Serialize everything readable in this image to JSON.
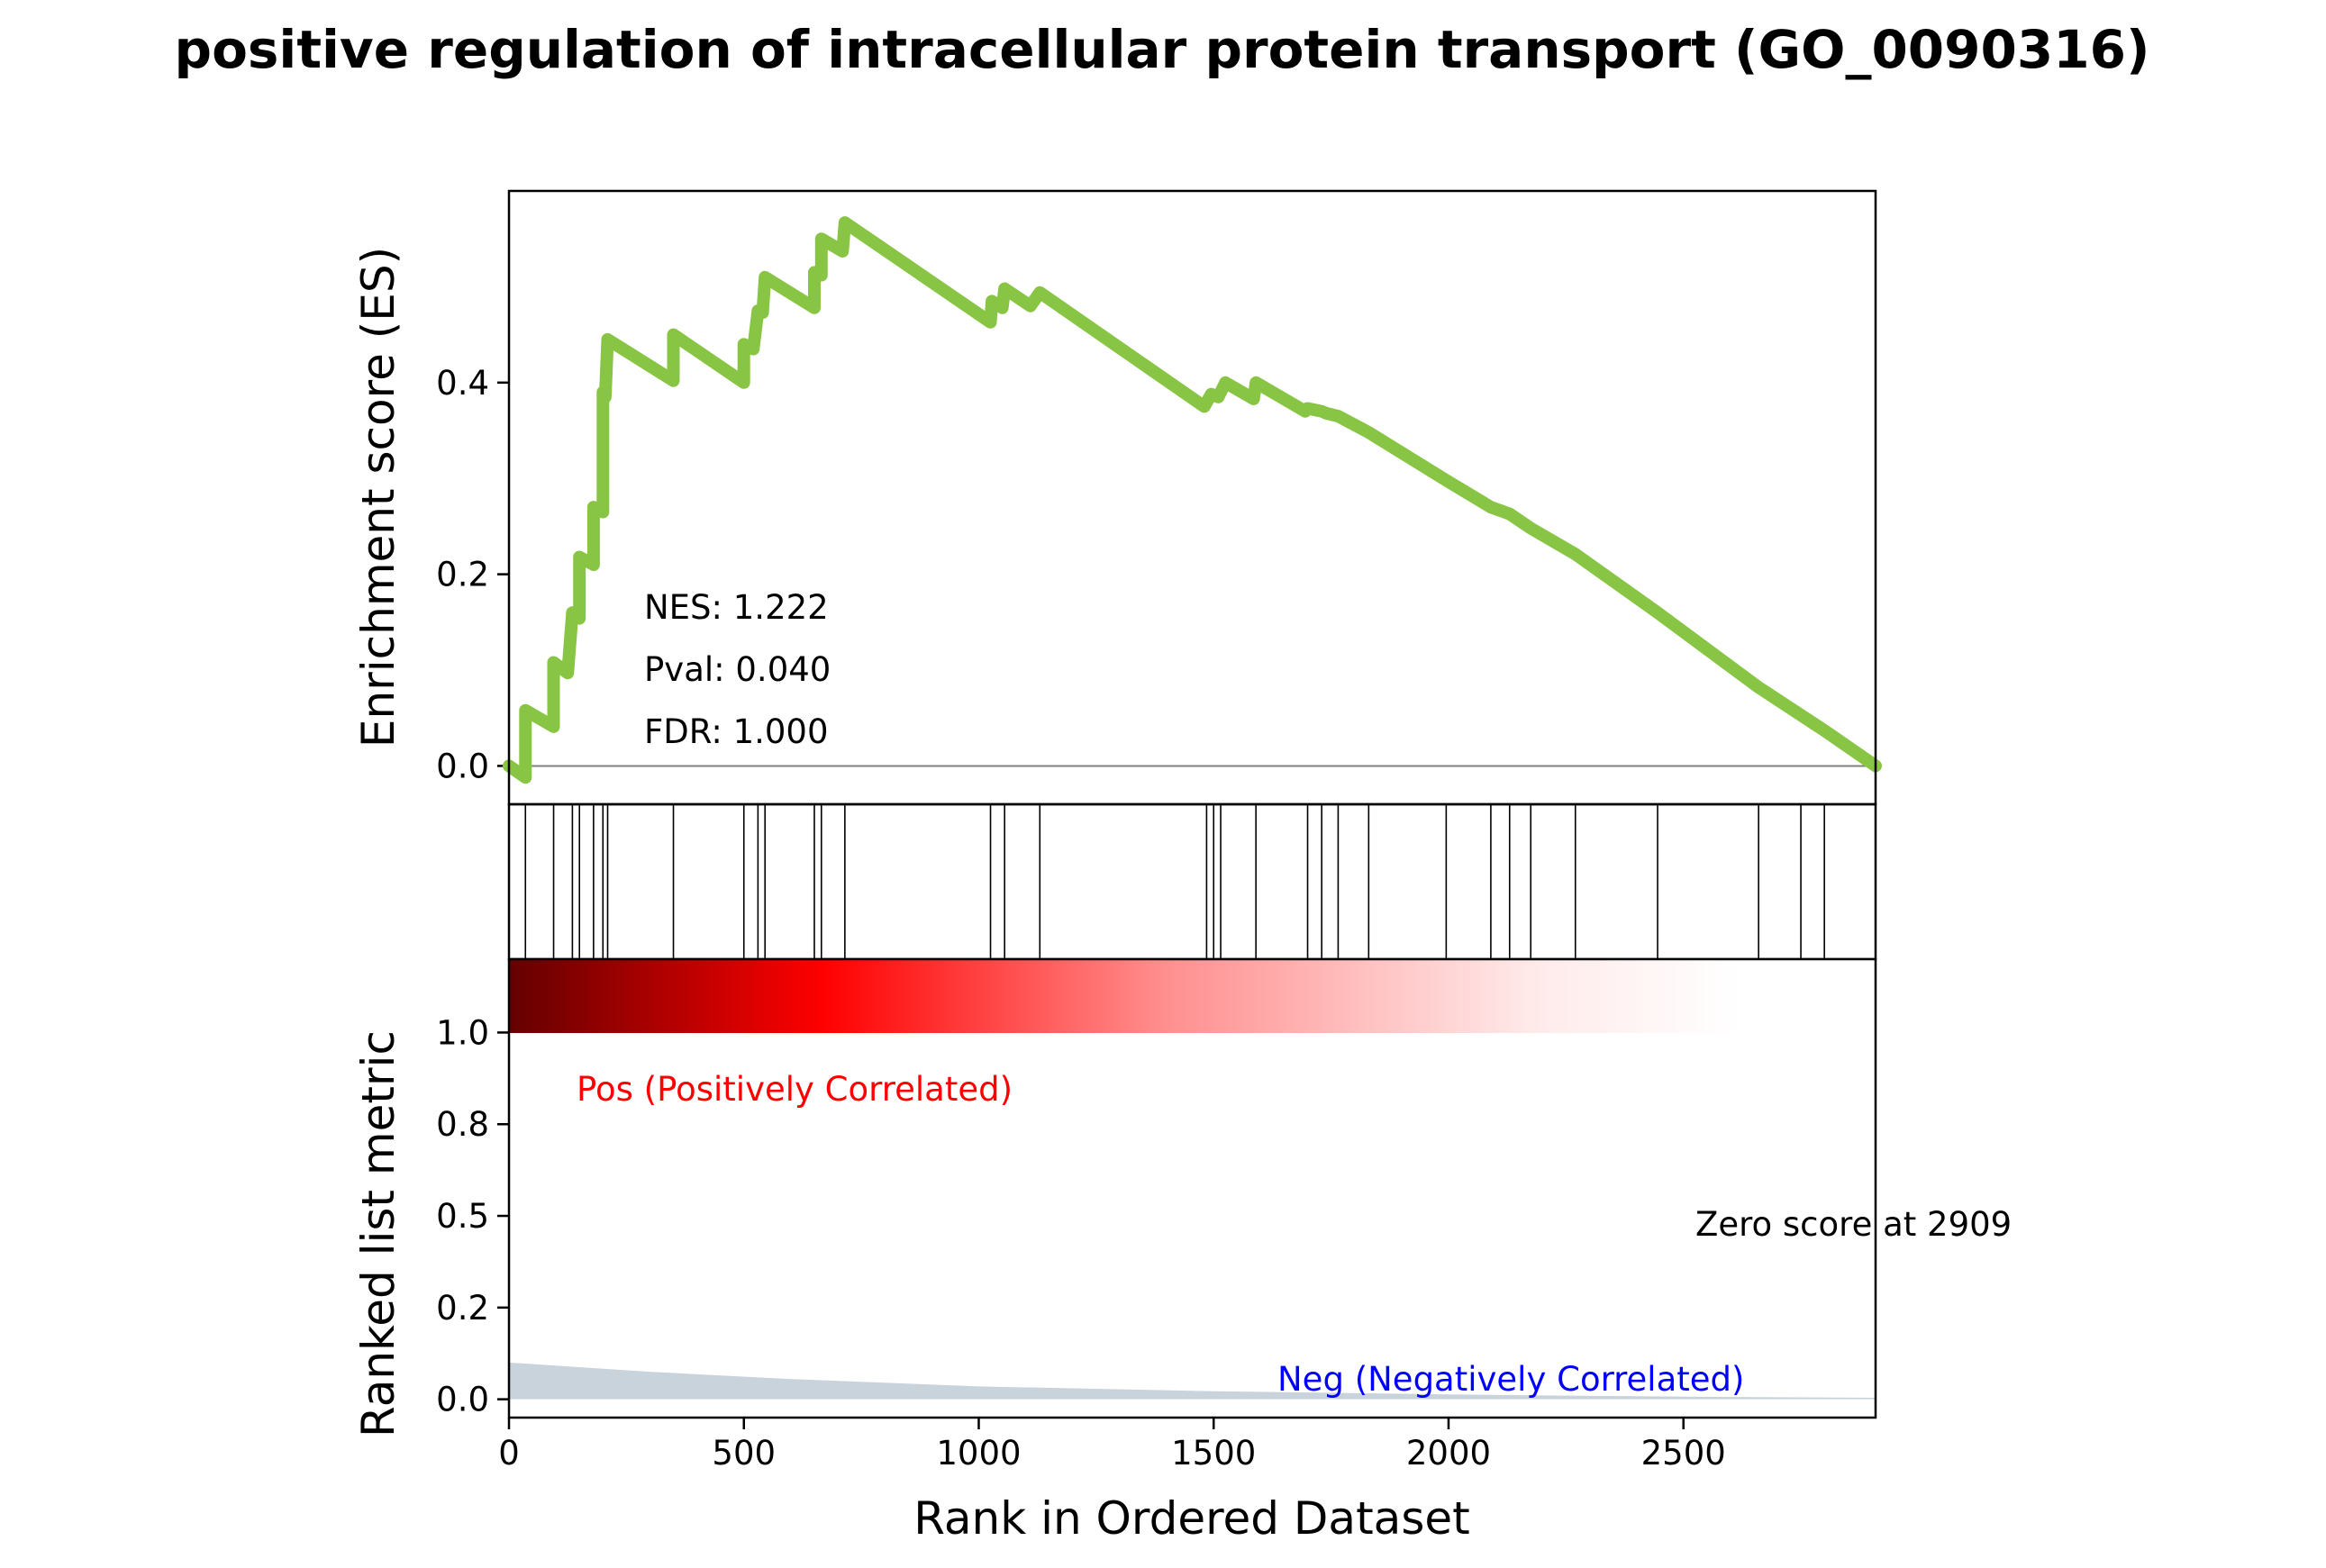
{
  "title": "positive regulation of intracellular protein transport (GO_0090316)",
  "colors": {
    "es_line": "#88c544",
    "hits": "#000000",
    "pos_text": "#ff0000",
    "neg_text": "#0000ff",
    "metric_fill": "#c9d3dc"
  },
  "chart_data": {
    "type": "line",
    "x_max": 2909,
    "xlabel": "Rank in Ordered Dataset",
    "x_ticks": [
      "0",
      "500",
      "1000",
      "1500",
      "2000",
      "2500"
    ],
    "es": {
      "ylabel": "Enrichment score (ES)",
      "ylim": [
        -0.04,
        0.6
      ],
      "y_ticks": [
        "0.0",
        "0.2",
        "0.4"
      ],
      "points": [
        [
          0,
          0.0
        ],
        [
          35,
          -0.012
        ],
        [
          35,
          0.058
        ],
        [
          95,
          0.041
        ],
        [
          95,
          0.108
        ],
        [
          125,
          0.097
        ],
        [
          135,
          0.16
        ],
        [
          150,
          0.154
        ],
        [
          150,
          0.218
        ],
        [
          180,
          0.21
        ],
        [
          180,
          0.27
        ],
        [
          200,
          0.265
        ],
        [
          200,
          0.39
        ],
        [
          205,
          0.385
        ],
        [
          210,
          0.445
        ],
        [
          350,
          0.402
        ],
        [
          350,
          0.45
        ],
        [
          500,
          0.4
        ],
        [
          500,
          0.44
        ],
        [
          520,
          0.435
        ],
        [
          530,
          0.475
        ],
        [
          540,
          0.473
        ],
        [
          545,
          0.51
        ],
        [
          650,
          0.478
        ],
        [
          650,
          0.515
        ],
        [
          665,
          0.512
        ],
        [
          665,
          0.55
        ],
        [
          710,
          0.537
        ],
        [
          715,
          0.567
        ],
        [
          1025,
          0.463
        ],
        [
          1028,
          0.485
        ],
        [
          1050,
          0.478
        ],
        [
          1055,
          0.498
        ],
        [
          1110,
          0.48
        ],
        [
          1130,
          0.494
        ],
        [
          1480,
          0.375
        ],
        [
          1495,
          0.388
        ],
        [
          1510,
          0.385
        ],
        [
          1525,
          0.4
        ],
        [
          1585,
          0.383
        ],
        [
          1590,
          0.4
        ],
        [
          1695,
          0.37
        ],
        [
          1700,
          0.373
        ],
        [
          1730,
          0.37
        ],
        [
          1740,
          0.368
        ],
        [
          1765,
          0.365
        ],
        [
          1830,
          0.348
        ],
        [
          1995,
          0.298
        ],
        [
          2090,
          0.27
        ],
        [
          2130,
          0.263
        ],
        [
          2175,
          0.248
        ],
        [
          2270,
          0.221
        ],
        [
          2445,
          0.16
        ],
        [
          2660,
          0.082
        ],
        [
          2750,
          0.053
        ],
        [
          2800,
          0.037
        ],
        [
          2909,
          0.0
        ]
      ]
    },
    "hits": [
      35,
      95,
      135,
      150,
      180,
      200,
      210,
      350,
      500,
      530,
      545,
      650,
      665,
      715,
      1025,
      1055,
      1130,
      1485,
      1500,
      1515,
      1590,
      1700,
      1730,
      1765,
      1830,
      1995,
      2090,
      2130,
      2175,
      2270,
      2445,
      2660,
      2750,
      2800
    ],
    "metric": {
      "ylabel": "Ranked list metric",
      "y_ticks": [
        "0.0",
        "0.2",
        "0.5",
        "0.8",
        "1.0"
      ],
      "y_tick_values": [
        0.0,
        0.25,
        0.5,
        0.75,
        1.0
      ],
      "ylim": [
        -0.05,
        1.2
      ],
      "curve": [
        [
          0,
          0.1
        ],
        [
          300,
          0.075
        ],
        [
          600,
          0.055
        ],
        [
          1000,
          0.035
        ],
        [
          1500,
          0.022
        ],
        [
          2000,
          0.013
        ],
        [
          2500,
          0.007
        ],
        [
          2909,
          0.004
        ]
      ]
    },
    "annotations": {
      "nes": "NES: 1.222",
      "pval": "Pval: 0.040",
      "fdr": "FDR: 1.000",
      "pos": "Pos (Positively Correlated)",
      "neg": "Neg (Negatively Correlated)",
      "zero": "Zero score at 2909"
    }
  }
}
